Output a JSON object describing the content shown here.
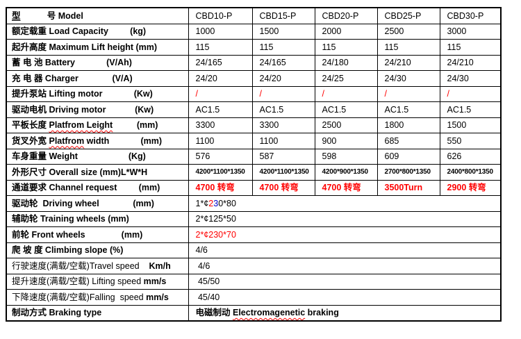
{
  "colors": {
    "text": "#000000",
    "border": "#000000",
    "background": "#ffffff",
    "highlight_red": "#ff0000",
    "highlight_blue": "#0000cc",
    "spellcheck_squiggle": "#ff0000"
  },
  "table": {
    "description_models": [
      "CBD10-P",
      "CBD15-P",
      "CBD20-P",
      "CBD25-P",
      "CBD30-P"
    ],
    "rows": [
      {
        "name": "model",
        "label": [
          {
            "t": "型",
            "b": true,
            "u": true
          },
          {
            "t": "           ",
            "b": true
          },
          {
            "t": "号 ",
            "b": true
          },
          {
            "t": "Model",
            "b": true
          }
        ],
        "cells": [
          "CBD10-P",
          "CBD15-P",
          "CBD20-P",
          "CBD25-P",
          "CBD30-P"
        ]
      },
      {
        "name": "load-capacity",
        "label": [
          {
            "t": "额定载重 ",
            "b": true
          },
          {
            "t": "Load Capacity",
            "b": true
          },
          {
            "t": "         (kg)",
            "b": true
          }
        ],
        "cells": [
          "1000",
          "1500",
          "2000",
          "2500",
          "3000"
        ]
      },
      {
        "name": "max-lift-height",
        "label": [
          {
            "t": "起升高度 ",
            "b": true
          },
          {
            "t": "Maximum Lift height (mm)",
            "b": true
          }
        ],
        "cells": [
          "115",
          "115",
          "115",
          "115",
          "115"
        ]
      },
      {
        "name": "battery",
        "label": [
          {
            "t": "蓄 电 池 ",
            "b": true
          },
          {
            "t": "Battery",
            "b": true
          },
          {
            "t": "             (V/Ah)",
            "b": true
          }
        ],
        "cells": [
          "24/165",
          "24/165",
          "24/180",
          "24/210",
          "24/210"
        ]
      },
      {
        "name": "charger",
        "label": [
          {
            "t": "充 电 器 ",
            "b": true
          },
          {
            "t": "Charger",
            "b": true
          },
          {
            "t": "              (V/A)",
            "b": true
          }
        ],
        "cells": [
          "24/20",
          "24/20",
          "24/25",
          "24/30",
          "24/30"
        ]
      },
      {
        "name": "lifting-motor",
        "label": [
          {
            "t": "提升泵站 ",
            "b": true
          },
          {
            "t": "Lifting motor",
            "b": true
          },
          {
            "t": "             (Kw)",
            "b": true
          }
        ],
        "cells": [
          "/",
          "/",
          "/",
          "/",
          "/"
        ],
        "cell_style": "red"
      },
      {
        "name": "driving-motor",
        "label": [
          {
            "t": "驱动电机 ",
            "b": true
          },
          {
            "t": "Driving motor",
            "b": true
          },
          {
            "t": "            (Kw)",
            "b": true
          }
        ],
        "cells": [
          "AC1.5",
          "AC1.5",
          "AC1.5",
          "AC1.5",
          "AC1.5"
        ]
      },
      {
        "name": "platform-length",
        "label": [
          {
            "t": "平板长度 ",
            "b": true
          },
          {
            "t": "Platfrom Leight",
            "b": true,
            "w": true
          },
          {
            "t": "          (mm)",
            "b": true
          }
        ],
        "cells": [
          "3300",
          "3300",
          "2500",
          "1800",
          "1500"
        ]
      },
      {
        "name": "platform-width",
        "label": [
          {
            "t": "货叉外宽 ",
            "b": true
          },
          {
            "t": "Platfrom",
            "b": true,
            "w": true
          },
          {
            "t": " width",
            "b": true
          },
          {
            "t": "             (mm)",
            "b": true
          }
        ],
        "cells": [
          "1100",
          "1100",
          "900",
          "685",
          "550"
        ]
      },
      {
        "name": "weight",
        "label": [
          {
            "t": "车身重量 ",
            "b": true
          },
          {
            "t": "Weight",
            "b": true
          },
          {
            "t": "                     (Kg)",
            "b": true
          }
        ],
        "cells": [
          "576",
          "587",
          "598",
          "609",
          "626"
        ]
      },
      {
        "name": "overall-size",
        "label": [
          {
            "t": "外形尺寸 ",
            "b": true
          },
          {
            "t": "Overall size (mm)L*W*H",
            "b": true
          }
        ],
        "cells": [
          "4200*1100*1350",
          "4200*1100*1350",
          "4200*900*1350",
          "2700*800*1350",
          "2400*800*1350"
        ],
        "cell_style": "small"
      },
      {
        "name": "channel-request",
        "label": [
          {
            "t": "通道要求 ",
            "b": true
          },
          {
            "t": "Channel request",
            "b": true
          },
          {
            "t": "         (mm)",
            "b": true
          }
        ],
        "cells": [
          "4700 转弯",
          "4700 转弯",
          "4700 转弯",
          "3500Turn",
          "2900 转弯"
        ],
        "cell_style": "redbold"
      },
      {
        "name": "driving-wheel",
        "label": [
          {
            "t": "驱动轮  ",
            "b": true
          },
          {
            "t": "Driving wheel",
            "b": true
          },
          {
            "t": "              (mm)",
            "b": true
          }
        ],
        "merged": [
          {
            "t": "1*¢"
          },
          {
            "t": "2",
            "c": "red"
          },
          {
            "t": "3",
            "c": "blue"
          },
          {
            "t": "0*80"
          }
        ]
      },
      {
        "name": "training-wheels",
        "label": [
          {
            "t": "辅助轮 ",
            "b": true
          },
          {
            "t": "Training wheels (mm)",
            "b": true
          }
        ],
        "merged": [
          {
            "t": "2*¢125*50"
          }
        ]
      },
      {
        "name": "front-wheels",
        "label": [
          {
            "t": "前轮 ",
            "b": true
          },
          {
            "t": "Front wheels",
            "b": true
          },
          {
            "t": "               (mm)",
            "b": true
          }
        ],
        "merged": [
          {
            "t": "2*¢230*70",
            "c": "red"
          }
        ]
      },
      {
        "name": "climbing-slope",
        "label": [
          {
            "t": "爬 坡 度 ",
            "b": true
          },
          {
            "t": "Climbing slope (%)",
            "b": true
          }
        ],
        "merged": [
          {
            "t": "4/6"
          }
        ]
      },
      {
        "name": "travel-speed",
        "label": [
          {
            "t": "行驶速度(满载/空载)",
            "b": false
          },
          {
            "t": "Travel speed",
            "b": false
          },
          {
            "t": "    ",
            "b": false
          },
          {
            "t": "Km/h",
            "b": true
          }
        ],
        "merged": [
          {
            "t": " 4/6"
          }
        ]
      },
      {
        "name": "lifting-speed",
        "label": [
          {
            "t": "提升速度(满载/空载) ",
            "b": false
          },
          {
            "t": "Lifting speed ",
            "b": false
          },
          {
            "t": "mm/s",
            "b": true
          }
        ],
        "merged": [
          {
            "t": " 45/50"
          }
        ]
      },
      {
        "name": "falling-speed",
        "label": [
          {
            "t": "下降速度(满载/空载)",
            "b": false
          },
          {
            "t": "Falling  speed ",
            "b": false
          },
          {
            "t": "mm/s",
            "b": true
          }
        ],
        "merged": [
          {
            "t": " 45/40"
          }
        ]
      },
      {
        "name": "braking-type",
        "label": [
          {
            "t": "制动方式 ",
            "b": true
          },
          {
            "t": "Braking type",
            "b": true
          }
        ],
        "merged": [
          {
            "t": "电磁制动 ",
            "b": true
          },
          {
            "t": "Electromagenetic",
            "b": true,
            "w": true
          },
          {
            "t": " braking",
            "b": true
          }
        ]
      }
    ]
  }
}
